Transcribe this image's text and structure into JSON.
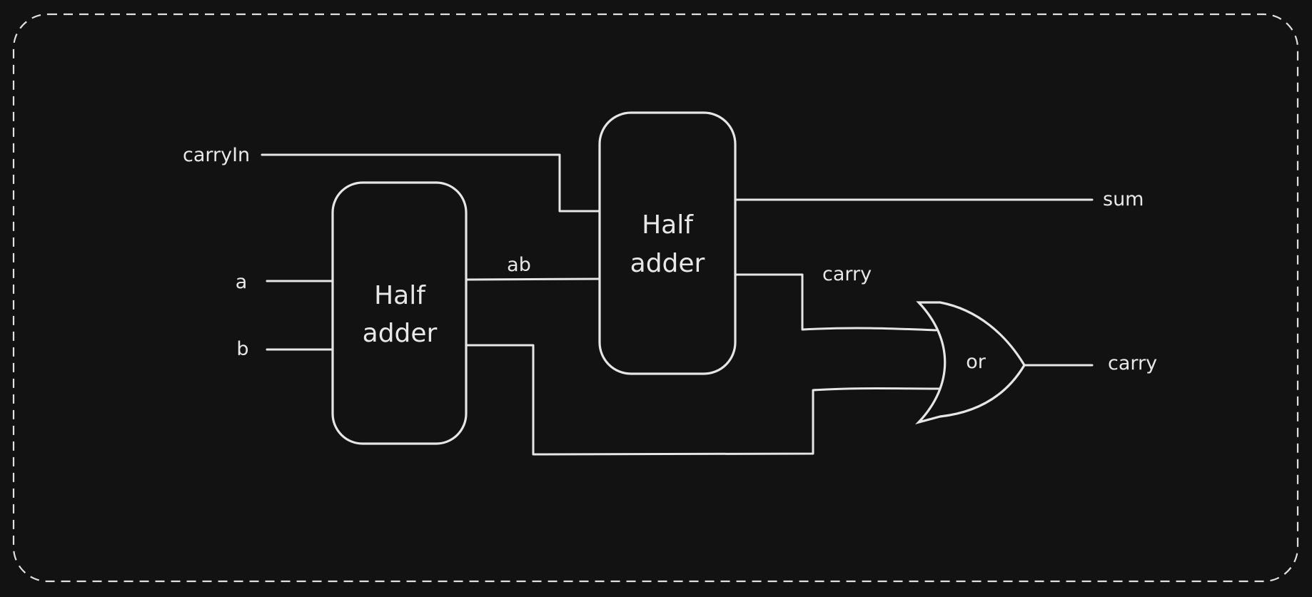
{
  "diagram": {
    "inputs": {
      "carry_in": "carryIn",
      "a": "a",
      "b": "b"
    },
    "blocks": {
      "half_adder_1": {
        "line1": "Half",
        "line2": "adder"
      },
      "half_adder_2": {
        "line1": "Half",
        "line2": "adder"
      },
      "or_gate": "or"
    },
    "signals": {
      "ab": "ab",
      "carry_internal": "carry"
    },
    "outputs": {
      "sum": "sum",
      "carry_out": "carry"
    },
    "colors": {
      "background": "#121212",
      "stroke": "#e6e6e6",
      "text": "#e8e8e8"
    }
  }
}
